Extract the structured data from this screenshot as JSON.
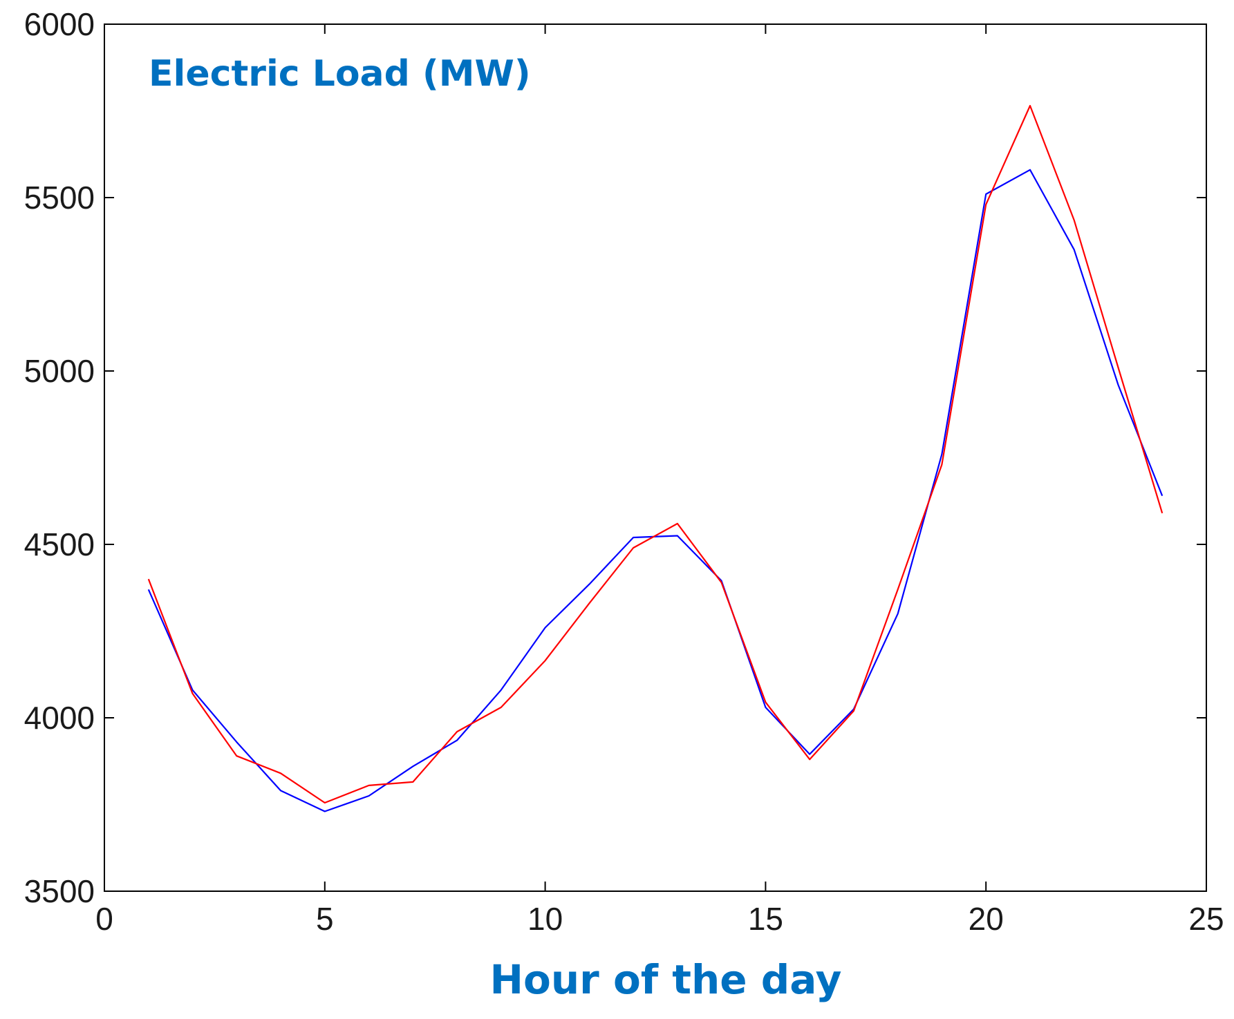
{
  "chart_data": {
    "type": "line",
    "title": "Electric Load (MW)",
    "xlabel": "Hour of the day",
    "ylabel": "",
    "xlim": [
      0,
      25
    ],
    "ylim": [
      3500,
      6000
    ],
    "xticks": [
      0,
      5,
      10,
      15,
      20,
      25
    ],
    "yticks": [
      3500,
      4000,
      4500,
      5000,
      5500,
      6000
    ],
    "grid": false,
    "legend": "none",
    "x": [
      1,
      2,
      3,
      4,
      5,
      6,
      7,
      8,
      9,
      10,
      11,
      12,
      13,
      14,
      15,
      16,
      17,
      18,
      19,
      20,
      21,
      22,
      23,
      24
    ],
    "series": [
      {
        "color": "#0000ff",
        "values": [
          4370,
          4080,
          3930,
          3790,
          3730,
          3775,
          3860,
          3935,
          4080,
          4260,
          4385,
          4520,
          4525,
          4395,
          4030,
          3895,
          4025,
          4300,
          4760,
          5510,
          5580,
          5350,
          4960,
          4640
        ]
      },
      {
        "color": "#ff0000",
        "values": [
          4400,
          4070,
          3890,
          3840,
          3755,
          3805,
          3815,
          3960,
          4030,
          4165,
          4330,
          4490,
          4560,
          4390,
          4045,
          3880,
          4020,
          4370,
          4730,
          5480,
          5765,
          5435,
          5010,
          4590
        ]
      }
    ],
    "title_color": "#0070c0",
    "xlabel_color": "#0070c0"
  }
}
